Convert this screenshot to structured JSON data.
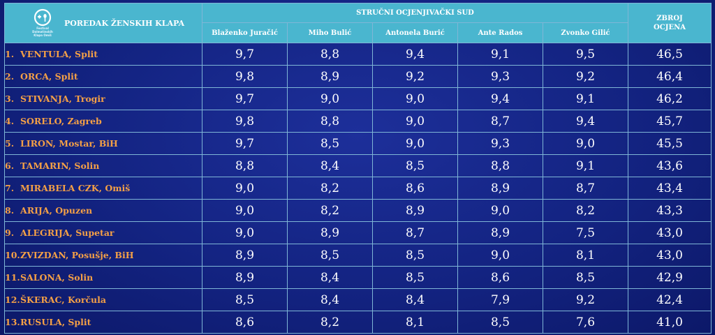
{
  "header": {
    "logo_text": [
      "Festival",
      "Dalmatinskih",
      "Klapa Omiš"
    ],
    "title": "POREDAK ŽENSKIH KLAPA",
    "jury_label": "STRUČNI OCJENJIVAČKI SUD",
    "total_label_line1": "ZBROJ",
    "total_label_line2": "OCJENA",
    "judges": [
      "Blaženko Juračić",
      "Miho Bulić",
      "Antonela Burić",
      "Ante Rados",
      "Zvonko Gilić"
    ]
  },
  "rows": [
    {
      "rank": "1.",
      "name": "VENTULA, Split",
      "scores": [
        "9,7",
        "8,8",
        "9,4",
        "9,1",
        "9,5"
      ],
      "total": "46,5"
    },
    {
      "rank": "2.",
      "name": "ORCA, Split",
      "scores": [
        "9,8",
        "8,9",
        "9,2",
        "9,3",
        "9,2"
      ],
      "total": "46,4"
    },
    {
      "rank": "3.",
      "name": "STIVANJA, Trogir",
      "scores": [
        "9,7",
        "9,0",
        "9,0",
        "9,4",
        "9,1"
      ],
      "total": "46,2"
    },
    {
      "rank": "4.",
      "name": "SORELO, Zagreb",
      "scores": [
        "9,8",
        "8,8",
        "9,0",
        "8,7",
        "9,4"
      ],
      "total": "45,7"
    },
    {
      "rank": "5.",
      "name": "LIRON, Mostar, BiH",
      "scores": [
        "9,7",
        "8,5",
        "9,0",
        "9,3",
        "9,0"
      ],
      "total": "45,5"
    },
    {
      "rank": "6.",
      "name": "TAMARIN, Solin",
      "scores": [
        "8,8",
        "8,4",
        "8,5",
        "8,8",
        "9,1"
      ],
      "total": "43,6"
    },
    {
      "rank": "7.",
      "name": "MIRABELA CZK, Omiš",
      "scores": [
        "9,0",
        "8,2",
        "8,6",
        "8,9",
        "8,7"
      ],
      "total": "43,4"
    },
    {
      "rank": "8.",
      "name": "ARIJA, Opuzen",
      "scores": [
        "9,0",
        "8,2",
        "8,9",
        "9,0",
        "8,2"
      ],
      "total": "43,3"
    },
    {
      "rank": "9.",
      "name": "ALEGRIJA, Supetar",
      "scores": [
        "9,0",
        "8,9",
        "8,7",
        "8,9",
        "7,5"
      ],
      "total": "43,0"
    },
    {
      "rank": "10.",
      "name": "ZVIZDAN, Posušje, BiH",
      "scores": [
        "8,9",
        "8,5",
        "8,5",
        "9,0",
        "8,1"
      ],
      "total": "43,0"
    },
    {
      "rank": "11.",
      "name": "SALONA, Solin",
      "scores": [
        "8,9",
        "8,4",
        "8,5",
        "8,6",
        "8,5"
      ],
      "total": "42,9"
    },
    {
      "rank": "12.",
      "name": "ŠKERAC, Korčula",
      "scores": [
        "8,5",
        "8,4",
        "8,4",
        "7,9",
        "9,2"
      ],
      "total": "42,4"
    },
    {
      "rank": "13.",
      "name": "RUSULA, Split",
      "scores": [
        "8,6",
        "8,2",
        "8,1",
        "8,5",
        "7,6"
      ],
      "total": "41,0"
    }
  ]
}
